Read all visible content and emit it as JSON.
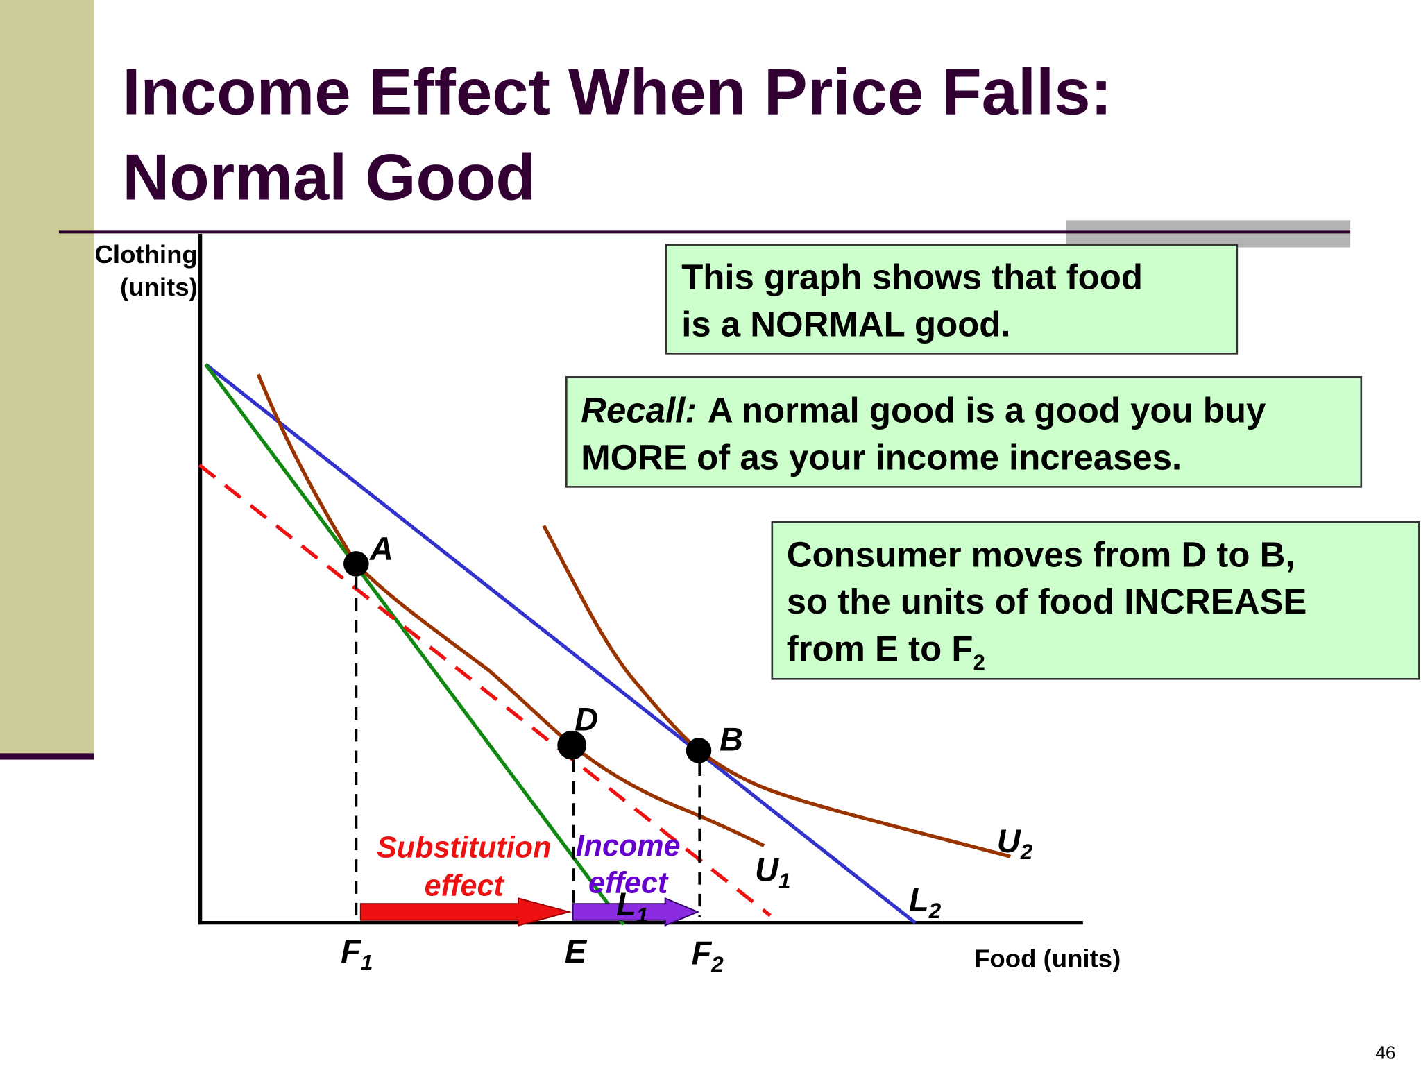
{
  "header": {
    "title_lines": [
      "Income Effect When Price Falls:",
      "Normal Good"
    ]
  },
  "axes": {
    "y_label_lines": [
      "Clothing",
      "(units)"
    ],
    "x_label": "Food (units)"
  },
  "notes": [
    {
      "lines": [
        "This graph shows that food",
        "is a NORMAL good."
      ]
    },
    {
      "emphasis": "Recall:",
      "lines": [
        "A normal good is a good you buy",
        "MORE of as your income increases."
      ]
    },
    {
      "lines": [
        "Consumer moves from D to B,",
        "so the units of food INCREASE",
        "from E to F"
      ],
      "sub": "2"
    }
  ],
  "points": [
    {
      "label": "A"
    },
    {
      "label": "D"
    },
    {
      "label": "B"
    }
  ],
  "curves": [
    {
      "base": "L",
      "sub": "1"
    },
    {
      "base": "L",
      "sub": "2"
    },
    {
      "base": "U",
      "sub": "1"
    },
    {
      "base": "U",
      "sub": "2"
    }
  ],
  "quantities": [
    {
      "base": "F",
      "sub": "1"
    },
    {
      "base": "E"
    },
    {
      "base": "F",
      "sub": "2"
    }
  ],
  "effects": {
    "substitution": [
      "Substitution",
      "effect"
    ],
    "income": [
      "Income",
      "effect"
    ]
  },
  "page_number": "46"
}
